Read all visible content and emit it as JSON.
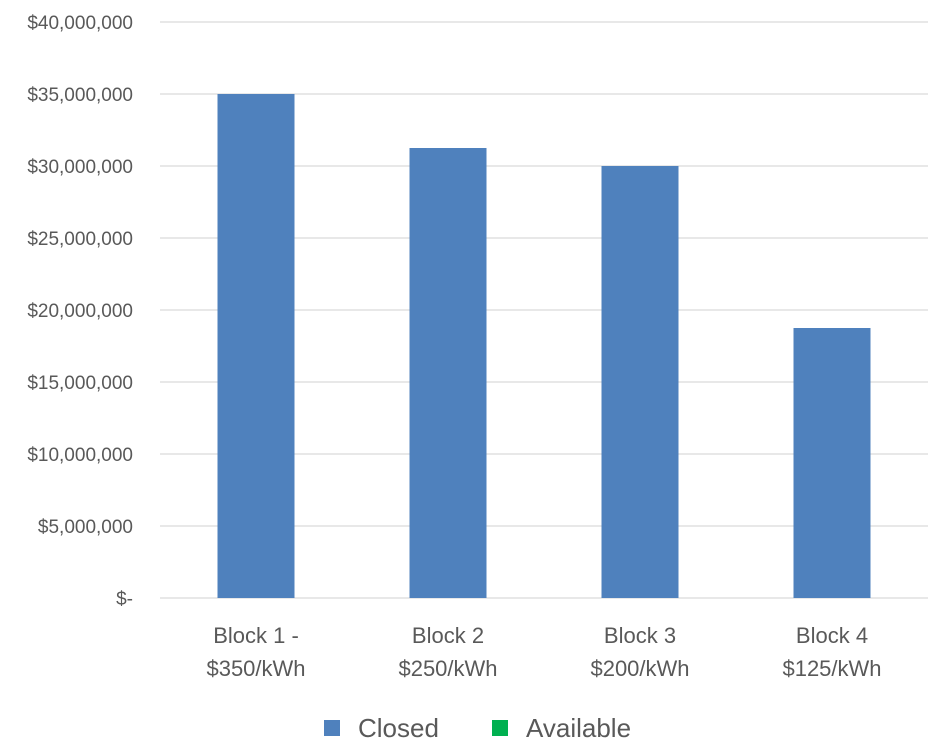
{
  "chart_data": {
    "type": "bar",
    "title": "",
    "xlabel": "",
    "ylabel": "",
    "categories": [
      [
        "Block 1 -",
        "$350/kWh"
      ],
      [
        "Block 2",
        "$250/kWh"
      ],
      [
        "Block 3",
        "$200/kWh"
      ],
      [
        "Block 4",
        "$125/kWh"
      ]
    ],
    "series": [
      {
        "name": "Closed",
        "color": "#4F81BD",
        "values": [
          35000000,
          31250000,
          30000000,
          18750000
        ]
      },
      {
        "name": "Available",
        "color": "#00B050",
        "values": [
          0,
          0,
          0,
          0
        ]
      }
    ],
    "ylim": [
      0,
      40000000
    ],
    "yticks": [
      0,
      5000000,
      10000000,
      15000000,
      20000000,
      25000000,
      30000000,
      35000000,
      40000000
    ],
    "ytick_labels": [
      "$-",
      "$5,000,000",
      "$10,000,000",
      "$15,000,000",
      "$20,000,000",
      "$25,000,000",
      "$30,000,000",
      "$35,000,000",
      "$40,000,000"
    ],
    "grid": true,
    "gridline_color": "#D9D9D9",
    "legend_position": "bottom",
    "stacked": true
  }
}
